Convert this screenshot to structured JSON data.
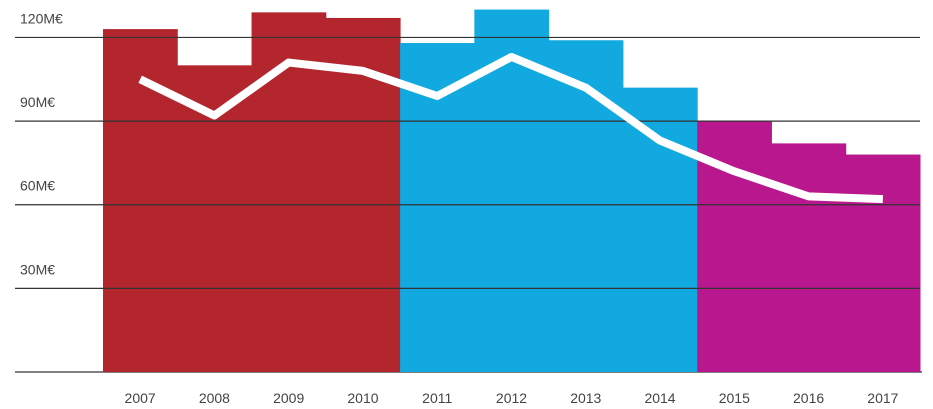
{
  "chart_data": {
    "type": "bar",
    "categories": [
      "2007",
      "2008",
      "2009",
      "2010",
      "2011",
      "2012",
      "2013",
      "2014",
      "2015",
      "2016",
      "2017"
    ],
    "series": [
      {
        "type": "bar",
        "colors": [
          "#b3262e",
          "#b3262e",
          "#b3262e",
          "#b3262e",
          "#12a9e0",
          "#12a9e0",
          "#12a9e0",
          "#12a9e0",
          "#b8178d",
          "#b8178d",
          "#b8178d"
        ],
        "values": [
          123,
          110,
          129,
          127,
          118,
          130,
          119,
          102,
          90,
          82,
          78
        ]
      },
      {
        "type": "line",
        "color": "#ffffff",
        "values": [
          105,
          92,
          111,
          108,
          99,
          113,
          102,
          83,
          72,
          63,
          62
        ]
      }
    ],
    "ylim": [
      0,
      132
    ],
    "yticks": [
      {
        "value": 30,
        "label": "30M€"
      },
      {
        "value": 60,
        "label": "60M€"
      },
      {
        "value": 90,
        "label": "90M€"
      },
      {
        "value": 120,
        "label": "120M€"
      }
    ],
    "grid": true
  }
}
